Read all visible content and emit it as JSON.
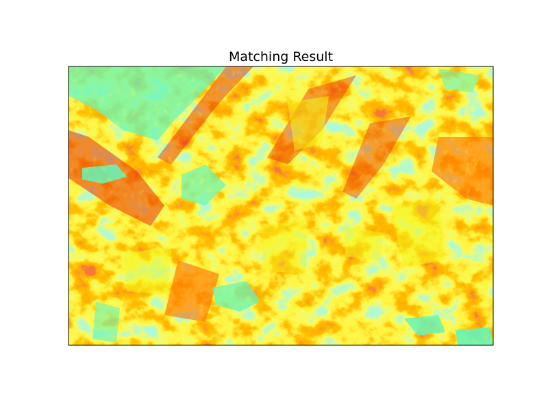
{
  "chart_data": {
    "type": "heatmap",
    "title": "Matching Result",
    "colormap": "jet",
    "value_range": [
      0,
      1
    ],
    "xticks": [],
    "yticks": [],
    "grid": false,
    "colors": {
      "background": "#ffffff",
      "frame": "#000000",
      "low_cyan_green": "#66f5b8",
      "mid_yellow": "#f2f51a",
      "high_orange": "#ff6a00",
      "peak_red": "#e8300a"
    }
  }
}
